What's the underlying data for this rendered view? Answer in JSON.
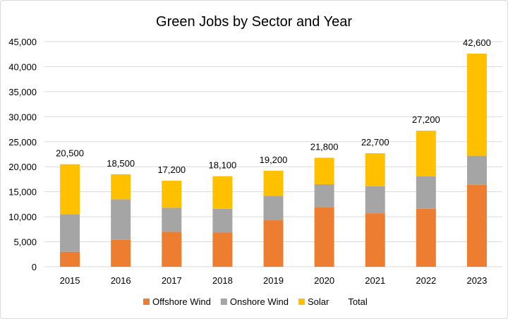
{
  "chart_data": {
    "type": "bar",
    "stacked": true,
    "title": "Green Jobs by Sector and Year",
    "xlabel": "",
    "ylabel": "",
    "categories": [
      "2015",
      "2016",
      "2017",
      "2018",
      "2019",
      "2020",
      "2021",
      "2022",
      "2023"
    ],
    "series": [
      {
        "name": "Offshore Wind",
        "color": "#ED7D31",
        "values": [
          3000,
          5400,
          7000,
          6900,
          9300,
          11900,
          10700,
          11600,
          16400
        ]
      },
      {
        "name": "Onshore Wind",
        "color": "#A5A5A5",
        "values": [
          7500,
          8100,
          4800,
          4700,
          4900,
          4600,
          5400,
          6500,
          5800
        ]
      },
      {
        "name": "Solar",
        "color": "#FFC000",
        "values": [
          10000,
          5000,
          5400,
          6500,
          5000,
          5300,
          6600,
          9100,
          20400
        ]
      }
    ],
    "total": {
      "name": "Total",
      "labels": [
        "20,500",
        "18,500",
        "17,200",
        "18,100",
        "19,200",
        "21,800",
        "22,700",
        "27,200",
        "42,600"
      ]
    },
    "ylim": [
      0,
      45000
    ],
    "yticks": [
      "0",
      "5,000",
      "10,000",
      "15,000",
      "20,000",
      "25,000",
      "30,000",
      "35,000",
      "40,000",
      "45,000"
    ],
    "grid": true,
    "legend": "bottom"
  }
}
